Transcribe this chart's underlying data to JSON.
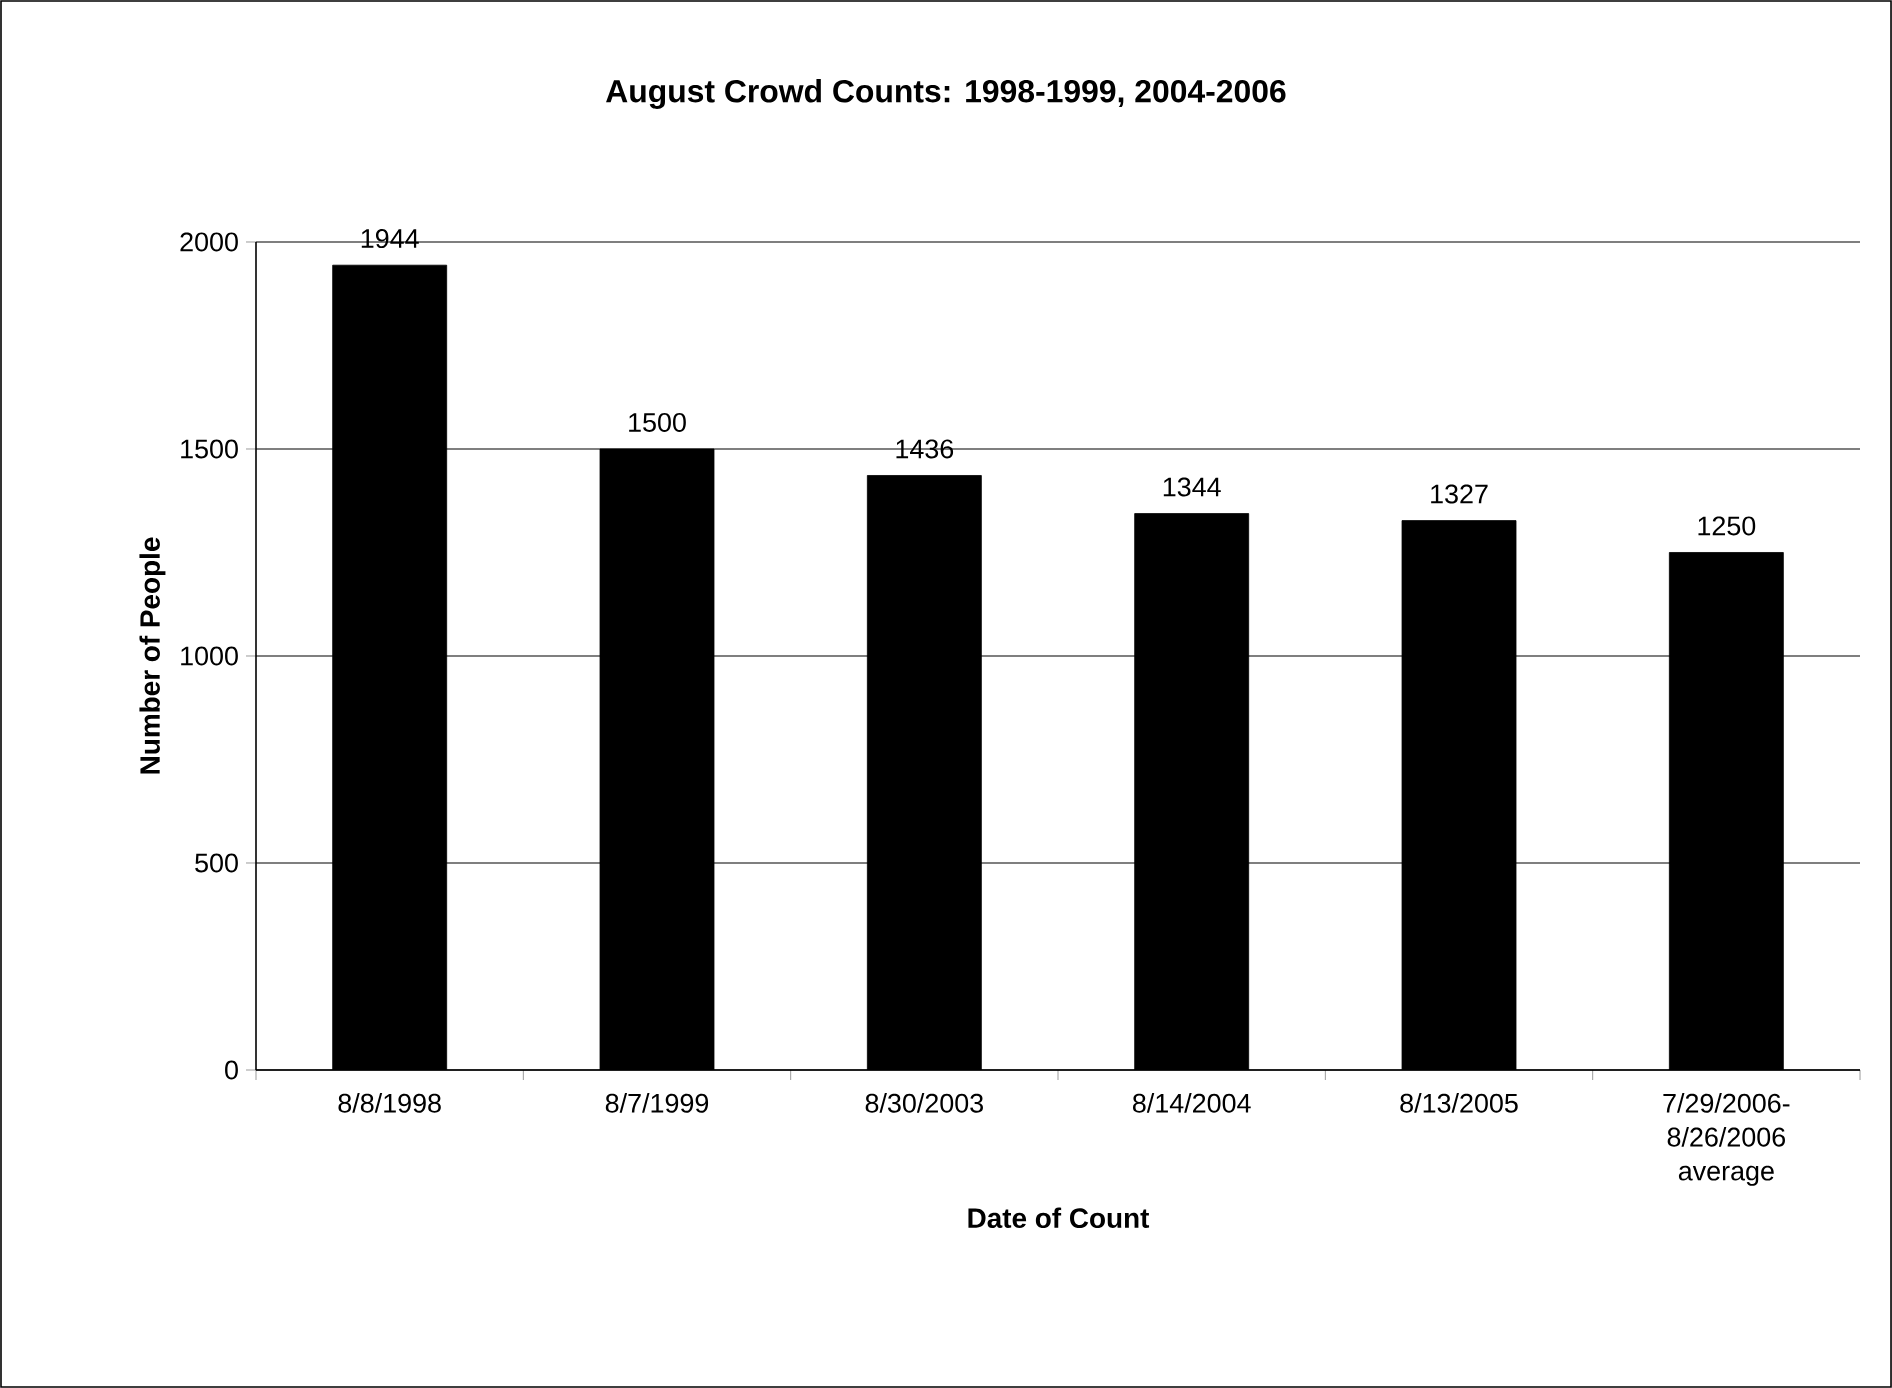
{
  "chart_data": {
    "type": "bar",
    "title": "August Crowd Counts: 1998-1999, 2004-2006",
    "xlabel": "Date of Count",
    "ylabel": "Number of People",
    "categories": [
      "8/8/1998",
      "8/7/1999",
      "8/30/2003",
      "8/14/2004",
      "8/13/2005",
      "7/29/2006-8/26/2006 average"
    ],
    "values": [
      1944,
      1500,
      1436,
      1344,
      1327,
      1250
    ],
    "color": "#000000",
    "ylim": [
      0,
      2000
    ],
    "yticks": [
      0,
      500,
      1000,
      1500,
      2000
    ],
    "grid": "y",
    "data_labels": true
  }
}
